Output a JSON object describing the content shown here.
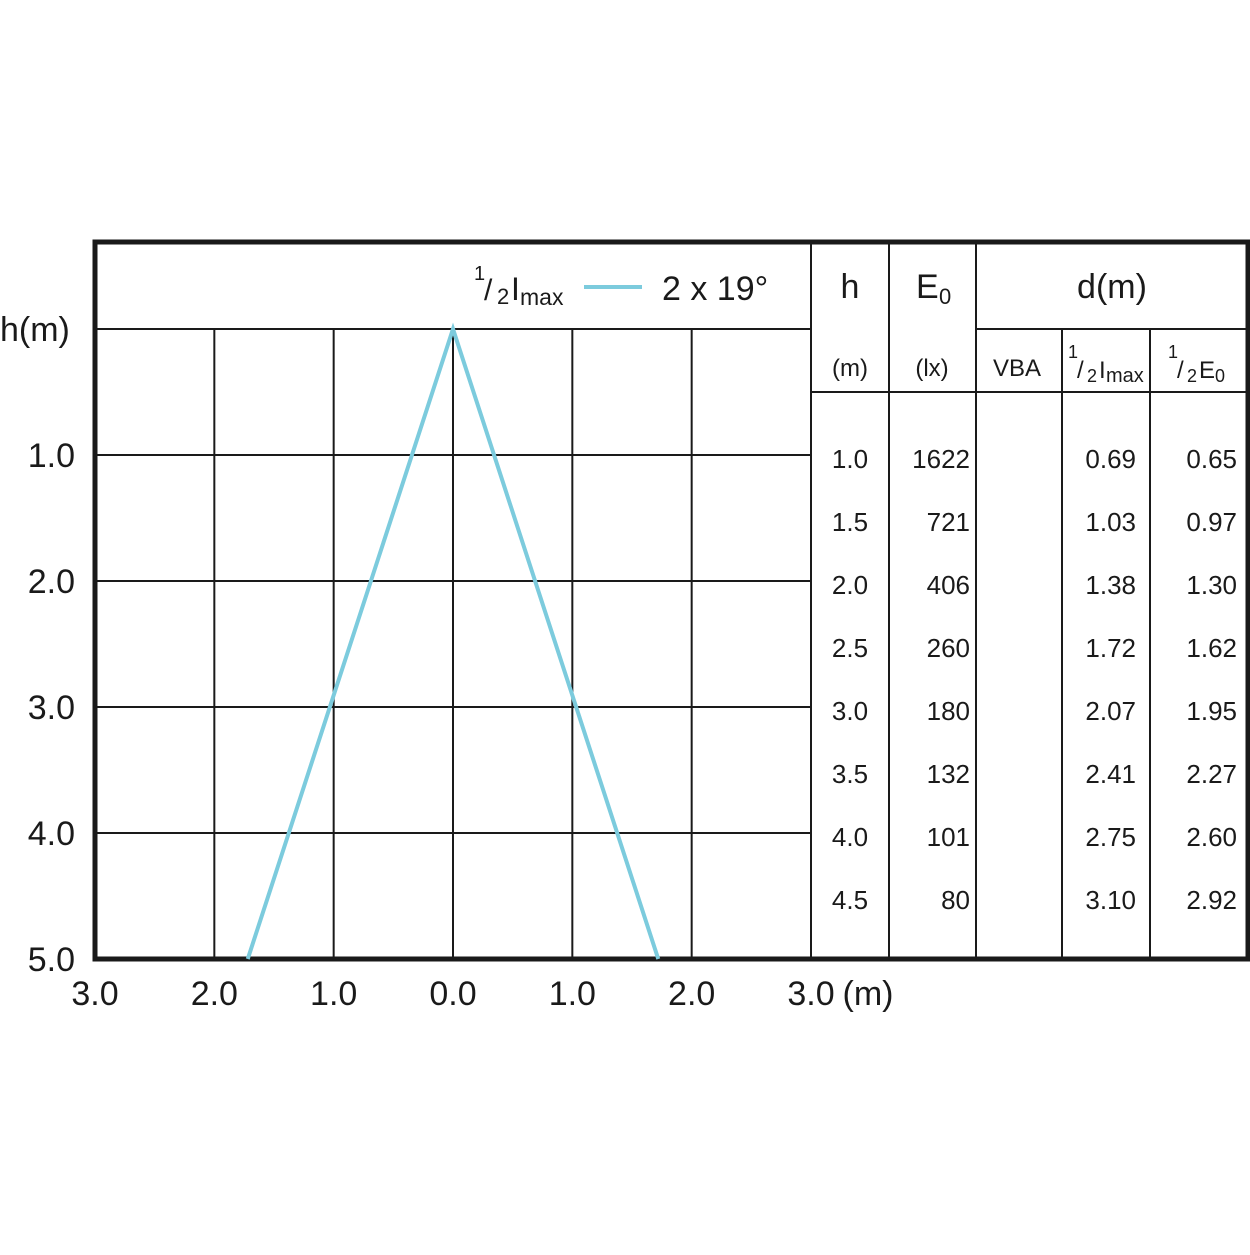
{
  "chart_data": {
    "type": "line",
    "title": "",
    "xlabel": "(m)",
    "ylabel": "h(m)",
    "xlim": [
      -3.0,
      3.0
    ],
    "ylim": [
      0,
      5.0
    ],
    "x_ticks": [
      "3.0",
      "2.0",
      "1.0",
      "0.0",
      "1.0",
      "2.0",
      "3.0"
    ],
    "y_ticks": [
      "1.0",
      "2.0",
      "3.0",
      "4.0",
      "5.0"
    ],
    "legend": {
      "half_imax_main": "I",
      "half_imax_sub": "max",
      "fraction_num": "1",
      "fraction_den": "2",
      "beam_label": "2 x 19°",
      "line_color": "#7ccbdd"
    },
    "series": [
      {
        "name": "1/2Imax",
        "x": [
          -1.72,
          0.0,
          1.72
        ],
        "y": [
          5.0,
          0.0,
          5.0
        ]
      }
    ],
    "table": {
      "col_h": {
        "title": "h",
        "unit": "(m)"
      },
      "col_e0": {
        "title_main": "E",
        "title_sub": "0",
        "unit": "(lx)"
      },
      "col_d": {
        "title": "d(m)",
        "sub_vba": "VBA",
        "sub_imax_num": "1",
        "sub_imax_den": "2",
        "sub_imax_main": "I",
        "sub_imax_sub": "max",
        "sub_e0_num": "1",
        "sub_e0_den": "2",
        "sub_e0_main": "E",
        "sub_e0_sub": "0"
      },
      "rows": [
        {
          "h": "1.0",
          "e0": "1622",
          "vba": "",
          "imax": "0.69",
          "e0half": "0.65"
        },
        {
          "h": "1.5",
          "e0": "721",
          "vba": "",
          "imax": "1.03",
          "e0half": "0.97"
        },
        {
          "h": "2.0",
          "e0": "406",
          "vba": "",
          "imax": "1.38",
          "e0half": "1.30"
        },
        {
          "h": "2.5",
          "e0": "260",
          "vba": "",
          "imax": "1.72",
          "e0half": "1.62"
        },
        {
          "h": "3.0",
          "e0": "180",
          "vba": "",
          "imax": "2.07",
          "e0half": "1.95"
        },
        {
          "h": "3.5",
          "e0": "132",
          "vba": "",
          "imax": "2.41",
          "e0half": "2.27"
        },
        {
          "h": "4.0",
          "e0": "101",
          "vba": "",
          "imax": "2.75",
          "e0half": "2.60"
        },
        {
          "h": "4.5",
          "e0": "80",
          "vba": "",
          "imax": "3.10",
          "e0half": "2.92"
        }
      ]
    }
  }
}
